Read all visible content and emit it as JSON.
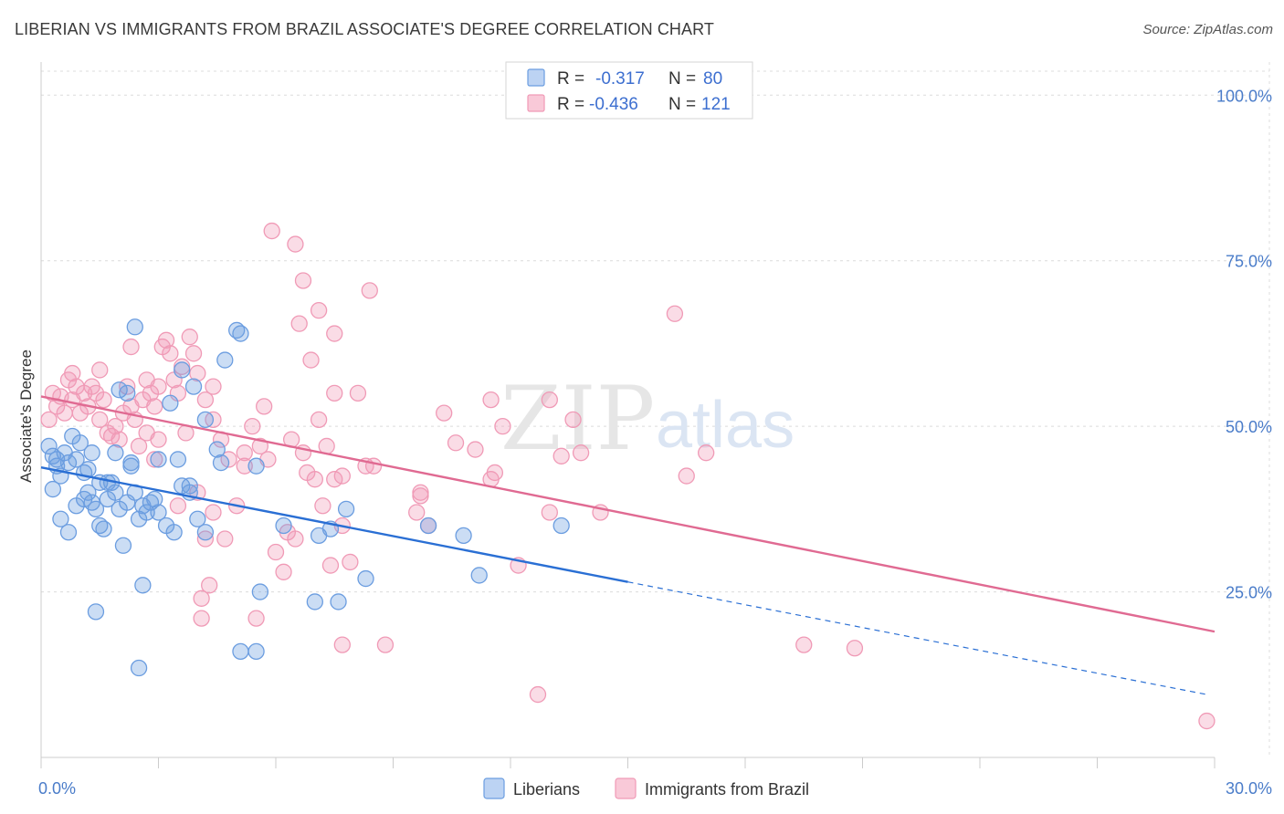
{
  "header": {
    "title": "LIBERIAN VS IMMIGRANTS FROM BRAZIL ASSOCIATE'S DEGREE CORRELATION CHART",
    "source": "Source: ZipAtlas.com"
  },
  "watermark": {
    "zip": "ZIP",
    "atlas": "atlas"
  },
  "chart_data": {
    "type": "scatter",
    "title": "LIBERIAN VS IMMIGRANTS FROM BRAZIL ASSOCIATE'S DEGREE CORRELATION CHART",
    "xlabel": "",
    "ylabel": "Associate's Degree",
    "xlim": [
      0,
      30
    ],
    "ylim": [
      0,
      105
    ],
    "x_tick_labels": [
      "0.0%",
      "30.0%"
    ],
    "y_ticks": [
      25,
      50,
      75,
      100
    ],
    "y_tick_labels": [
      "25.0%",
      "50.0%",
      "75.0%",
      "100.0%"
    ],
    "grid": true,
    "legend_placement": "top-center",
    "colors": {
      "liberians": "#6b9de0",
      "brazil": "#f09ab6",
      "liberians_line": "#2a6fd4",
      "brazil_line": "#e06a92"
    },
    "legend": [
      {
        "r_label": "R =",
        "r_value": "-0.317",
        "n_label": "N =",
        "n_value": "80"
      },
      {
        "r_label": "R =",
        "r_value": "-0.436",
        "n_label": "N =",
        "n_value": "121"
      }
    ],
    "series": [
      {
        "name": "Liberians",
        "trend": {
          "x0": 0.0,
          "y0": 43.8,
          "x1": 15.0,
          "y1": 26.5,
          "dash_to_x": 29.8,
          "dash_to_y": 9.5
        },
        "points": [
          [
            0.2,
            47
          ],
          [
            0.3,
            45.5
          ],
          [
            0.4,
            44
          ],
          [
            0.5,
            42.5
          ],
          [
            0.6,
            46
          ],
          [
            0.7,
            44.5
          ],
          [
            0.8,
            48.5
          ],
          [
            0.9,
            45
          ],
          [
            1.0,
            47.5
          ],
          [
            1.1,
            43
          ],
          [
            0.3,
            40.5
          ],
          [
            0.5,
            36
          ],
          [
            0.7,
            34
          ],
          [
            0.9,
            38
          ],
          [
            1.1,
            39
          ],
          [
            1.2,
            40
          ],
          [
            1.3,
            38.5
          ],
          [
            1.4,
            37.5
          ],
          [
            1.5,
            35
          ],
          [
            1.6,
            34.5
          ],
          [
            1.7,
            39
          ],
          [
            1.8,
            41.5
          ],
          [
            1.9,
            40
          ],
          [
            2.0,
            37.5
          ],
          [
            2.1,
            32
          ],
          [
            2.2,
            38.5
          ],
          [
            2.3,
            44
          ],
          [
            2.4,
            40
          ],
          [
            2.5,
            36
          ],
          [
            2.6,
            26
          ],
          [
            2.7,
            37
          ],
          [
            2.8,
            38.5
          ],
          [
            2.9,
            39
          ],
          [
            3.0,
            37
          ],
          [
            3.2,
            35
          ],
          [
            3.4,
            34
          ],
          [
            3.6,
            41
          ],
          [
            3.8,
            40
          ],
          [
            4.0,
            36
          ],
          [
            4.2,
            34
          ],
          [
            1.5,
            41.5
          ],
          [
            1.7,
            41.5
          ],
          [
            2.0,
            55.5
          ],
          [
            2.3,
            44.5
          ],
          [
            3.3,
            53.5
          ],
          [
            3.6,
            58.5
          ],
          [
            3.9,
            56
          ],
          [
            4.2,
            51
          ],
          [
            4.5,
            46.5
          ],
          [
            4.6,
            44.5
          ],
          [
            4.7,
            60
          ],
          [
            5.0,
            64.5
          ],
          [
            5.1,
            64
          ],
          [
            5.5,
            44
          ],
          [
            6.2,
            35
          ],
          [
            7.1,
            33.5
          ],
          [
            7.4,
            34.5
          ],
          [
            7.8,
            37.5
          ],
          [
            8.3,
            27
          ],
          [
            9.9,
            35
          ],
          [
            10.8,
            33.5
          ],
          [
            11.2,
            27.5
          ],
          [
            13.3,
            35
          ],
          [
            1.4,
            22
          ],
          [
            2.5,
            13.5
          ],
          [
            5.1,
            16
          ],
          [
            5.5,
            16
          ],
          [
            5.6,
            25
          ],
          [
            7.0,
            23.5
          ],
          [
            7.6,
            23.5
          ],
          [
            0.4,
            45
          ],
          [
            1.2,
            43.5
          ],
          [
            1.9,
            46
          ],
          [
            2.2,
            55
          ],
          [
            2.4,
            65
          ],
          [
            3.0,
            45
          ],
          [
            3.5,
            45
          ],
          [
            3.8,
            41
          ],
          [
            1.3,
            46
          ],
          [
            2.6,
            38
          ]
        ]
      },
      {
        "name": "Immigrants from Brazil",
        "trend": {
          "x0": 0.0,
          "y0": 54.5,
          "x1": 30.0,
          "y1": 19.0
        },
        "points": [
          [
            0.2,
            51
          ],
          [
            0.3,
            55
          ],
          [
            0.4,
            53
          ],
          [
            0.5,
            54.5
          ],
          [
            0.6,
            52
          ],
          [
            0.7,
            57
          ],
          [
            0.8,
            54
          ],
          [
            0.9,
            56
          ],
          [
            1.0,
            52
          ],
          [
            1.1,
            55
          ],
          [
            1.2,
            53
          ],
          [
            1.3,
            56
          ],
          [
            1.4,
            55
          ],
          [
            1.5,
            51
          ],
          [
            1.6,
            54
          ],
          [
            1.7,
            49
          ],
          [
            1.8,
            48.5
          ],
          [
            1.9,
            50
          ],
          [
            2.0,
            48
          ],
          [
            2.1,
            52
          ],
          [
            2.2,
            56
          ],
          [
            2.3,
            53
          ],
          [
            2.4,
            51
          ],
          [
            2.5,
            47
          ],
          [
            2.6,
            54
          ],
          [
            2.7,
            57
          ],
          [
            2.8,
            55
          ],
          [
            2.9,
            53
          ],
          [
            3.0,
            56
          ],
          [
            3.1,
            62
          ],
          [
            3.2,
            63
          ],
          [
            3.3,
            61
          ],
          [
            3.4,
            57
          ],
          [
            3.5,
            55
          ],
          [
            3.6,
            59
          ],
          [
            3.8,
            63.5
          ],
          [
            3.9,
            61
          ],
          [
            4.0,
            58
          ],
          [
            4.2,
            54
          ],
          [
            4.4,
            51
          ],
          [
            4.6,
            48
          ],
          [
            4.8,
            45
          ],
          [
            5.0,
            38
          ],
          [
            5.2,
            44
          ],
          [
            5.4,
            50
          ],
          [
            5.6,
            47
          ],
          [
            5.8,
            45
          ],
          [
            6.0,
            31
          ],
          [
            6.2,
            28
          ],
          [
            6.3,
            34
          ],
          [
            6.5,
            33
          ],
          [
            6.7,
            46
          ],
          [
            6.8,
            43
          ],
          [
            7.0,
            42
          ],
          [
            7.2,
            38
          ],
          [
            7.4,
            29
          ],
          [
            7.5,
            42
          ],
          [
            7.7,
            35
          ],
          [
            7.9,
            29.5
          ],
          [
            8.3,
            44
          ],
          [
            9.6,
            37
          ],
          [
            9.7,
            40
          ],
          [
            9.9,
            35
          ],
          [
            10.3,
            52
          ],
          [
            10.6,
            47.5
          ],
          [
            11.1,
            46.5
          ],
          [
            11.5,
            42
          ],
          [
            11.6,
            43
          ],
          [
            11.8,
            50
          ],
          [
            13.8,
            46
          ],
          [
            14.3,
            37
          ],
          [
            16.2,
            67
          ],
          [
            16.5,
            42.5
          ],
          [
            17.0,
            46
          ],
          [
            19.5,
            17
          ],
          [
            20.8,
            16.5
          ],
          [
            29.8,
            5.5
          ],
          [
            13.3,
            45.5
          ],
          [
            13.6,
            51
          ],
          [
            13.0,
            54
          ],
          [
            5.9,
            79.5
          ],
          [
            6.5,
            77.5
          ],
          [
            6.7,
            72
          ],
          [
            8.4,
            70.5
          ],
          [
            6.6,
            65.5
          ],
          [
            7.1,
            67.5
          ],
          [
            7.5,
            64
          ],
          [
            6.9,
            60
          ],
          [
            7.5,
            55
          ],
          [
            8.1,
            55
          ],
          [
            7.7,
            42.5
          ],
          [
            8.5,
            44
          ],
          [
            7.3,
            47
          ],
          [
            7.1,
            51
          ],
          [
            6.4,
            48
          ],
          [
            3.0,
            48
          ],
          [
            3.5,
            38
          ],
          [
            4.0,
            40
          ],
          [
            4.2,
            33
          ],
          [
            4.4,
            37
          ],
          [
            4.1,
            24
          ],
          [
            4.3,
            26
          ],
          [
            4.1,
            21
          ],
          [
            5.5,
            21
          ],
          [
            5.2,
            46
          ],
          [
            4.4,
            56
          ],
          [
            3.7,
            49
          ],
          [
            2.9,
            45
          ],
          [
            0.8,
            58
          ],
          [
            1.5,
            58.5
          ],
          [
            2.3,
            62
          ],
          [
            2.7,
            49
          ],
          [
            9.7,
            39.5
          ],
          [
            13.0,
            37
          ],
          [
            12.2,
            29
          ],
          [
            12.7,
            9.5
          ],
          [
            7.7,
            17
          ],
          [
            8.8,
            17
          ],
          [
            4.7,
            33
          ],
          [
            5.7,
            53
          ],
          [
            11.5,
            54
          ]
        ]
      }
    ]
  },
  "legend_bottom": [
    {
      "label": "Liberians"
    },
    {
      "label": "Immigrants from Brazil"
    }
  ]
}
